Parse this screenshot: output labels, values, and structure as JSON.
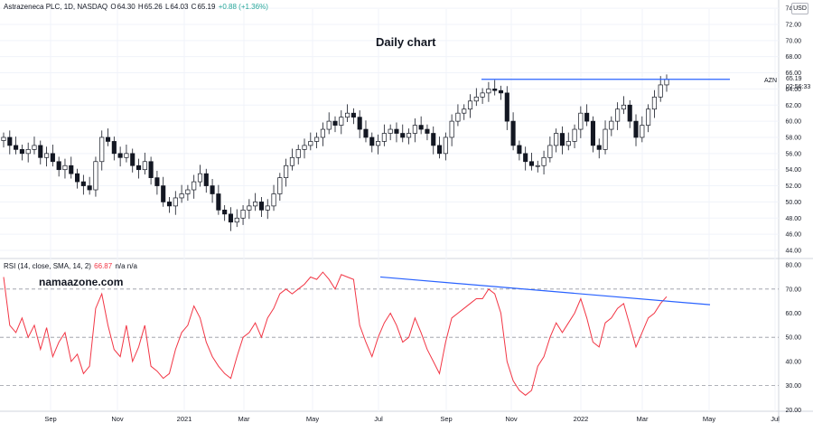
{
  "header": {
    "symbol_line": "Astrazeneca PLC, 1D, NASDAQ",
    "open_label": "O",
    "open": "64.30",
    "high_label": "H",
    "high": "65.26",
    "low_label": "L",
    "low": "64.03",
    "close_label": "C",
    "close": "65.19",
    "change": "+0.88 (+1.36%)"
  },
  "title": "Daily chart",
  "watermark": "namaazone.com",
  "currency": "USD",
  "last_price": {
    "symbol": "AZN",
    "value": "65.19",
    "countdown": "02:56:33"
  },
  "rsi_header": {
    "label": "RSI (14, close, SMA, 14, 2)",
    "value": "66.87",
    "extra": "n/a  n/a"
  },
  "colors": {
    "candle": "#131722",
    "trendline": "#2962ff",
    "rsi": "#f23645",
    "grid": "#f0f3fa",
    "dash": "#9598a1"
  },
  "chart_data": [
    {
      "type": "candlestick",
      "title": "Daily chart",
      "ylim": [
        44,
        74
      ],
      "yticks": [
        "44.00",
        "46.00",
        "48.00",
        "50.00",
        "52.00",
        "54.00",
        "56.00",
        "58.00",
        "60.00",
        "62.00",
        "64.00",
        "66.00",
        "68.00",
        "70.00",
        "72.00",
        "74.00"
      ],
      "x_ticks": [
        "Sep",
        "Nov",
        "2021",
        "Mar",
        "May",
        "Jul",
        "Sep",
        "Nov",
        "2022",
        "Mar",
        "May",
        "Jul"
      ],
      "close_series": [
        58,
        57,
        56.5,
        56,
        56.5,
        57,
        55.5,
        56,
        55,
        54,
        54.5,
        53.5,
        52.5,
        52,
        51.5,
        55,
        58,
        57.5,
        56,
        55.5,
        56,
        54.5,
        54,
        55,
        53,
        52,
        50,
        49.5,
        50.5,
        51,
        51.5,
        52.5,
        53.5,
        52,
        51,
        49,
        48.5,
        47.5,
        48,
        49,
        49.5,
        50,
        49,
        49.5,
        51,
        53,
        54.5,
        55.5,
        56.5,
        57,
        57.5,
        58,
        59,
        60,
        59.5,
        60.5,
        61,
        60.5,
        59,
        58,
        57,
        57.5,
        58.5,
        59,
        58.5,
        58,
        58.5,
        59.5,
        59,
        58.5,
        57,
        56,
        58,
        60,
        61,
        61.5,
        62.5,
        63,
        63.5,
        64,
        63.8,
        63.5,
        60,
        57,
        56,
        55,
        54.5,
        54.5,
        55.5,
        57,
        58.5,
        57,
        57.5,
        59,
        61,
        60,
        57,
        56.5,
        59,
        60,
        61.5,
        62,
        60,
        58,
        59.5,
        61.5,
        63,
        64.5,
        65.19
      ],
      "resistance_line": {
        "from_x": "Oct",
        "to_x": "May",
        "value": 65.19
      }
    },
    {
      "type": "line",
      "series": [
        {
          "name": "RSI (14, close, SMA, 14, 2)",
          "values": [
            75,
            55,
            52,
            58,
            50,
            55,
            45,
            54,
            42,
            48,
            52,
            40,
            43,
            35,
            38,
            62,
            68,
            55,
            45,
            42,
            55,
            40,
            46,
            55,
            38,
            36,
            33,
            35,
            45,
            52,
            55,
            63,
            58,
            48,
            42,
            38,
            35,
            33,
            42,
            50,
            52,
            56,
            50,
            58,
            62,
            68,
            70,
            68,
            70,
            72,
            75,
            74,
            77,
            74,
            70,
            76,
            75,
            74,
            55,
            48,
            42,
            50,
            56,
            60,
            55,
            48,
            50,
            58,
            52,
            45,
            40,
            35,
            48,
            58,
            60,
            62,
            64,
            66,
            66,
            70,
            68,
            60,
            40,
            32,
            28,
            26,
            28,
            38,
            42,
            50,
            56,
            52,
            56,
            60,
            66,
            58,
            48,
            46,
            56,
            58,
            62,
            64,
            55,
            46,
            52,
            58,
            60,
            64,
            66.87
          ]
        }
      ],
      "ylim": [
        20,
        80
      ],
      "yticks": [
        "20.00",
        "30.00",
        "40.00",
        "50.00",
        "60.00",
        "70.00",
        "80.00"
      ],
      "bands": [
        30,
        50,
        70
      ],
      "trendline": {
        "from": [
          "Jul",
          75
        ],
        "to": [
          "May",
          63.5
        ]
      }
    }
  ]
}
